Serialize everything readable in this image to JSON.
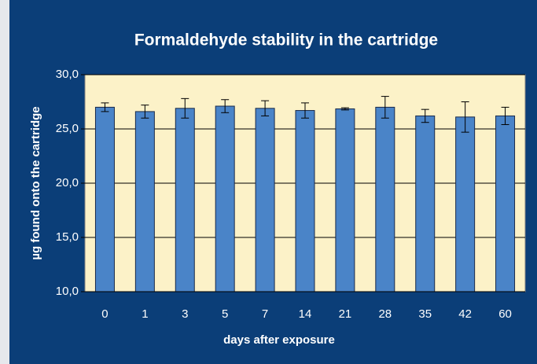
{
  "chart_data": {
    "type": "bar",
    "title": "Formaldehyde stability in the cartridge",
    "xlabel": "days after exposure",
    "ylabel": "µg found onto the cartridge",
    "categories": [
      "0",
      "1",
      "3",
      "5",
      "7",
      "14",
      "21",
      "28",
      "35",
      "42",
      "60"
    ],
    "values": [
      27.0,
      26.6,
      26.9,
      27.1,
      26.9,
      26.7,
      26.85,
      27.0,
      26.2,
      26.1,
      26.2
    ],
    "errors": [
      0.4,
      0.6,
      0.9,
      0.6,
      0.7,
      0.7,
      0.1,
      1.0,
      0.6,
      1.4,
      0.8
    ],
    "color": "#4a84c8",
    "ylim": [
      10,
      30
    ],
    "yticks": [
      {
        "value": 10,
        "label": "10,0"
      },
      {
        "value": 15,
        "label": "15,0"
      },
      {
        "value": 20,
        "label": "20,0"
      },
      {
        "value": 25,
        "label": "25,0"
      },
      {
        "value": 30,
        "label": "30,0"
      }
    ],
    "grid": true
  }
}
